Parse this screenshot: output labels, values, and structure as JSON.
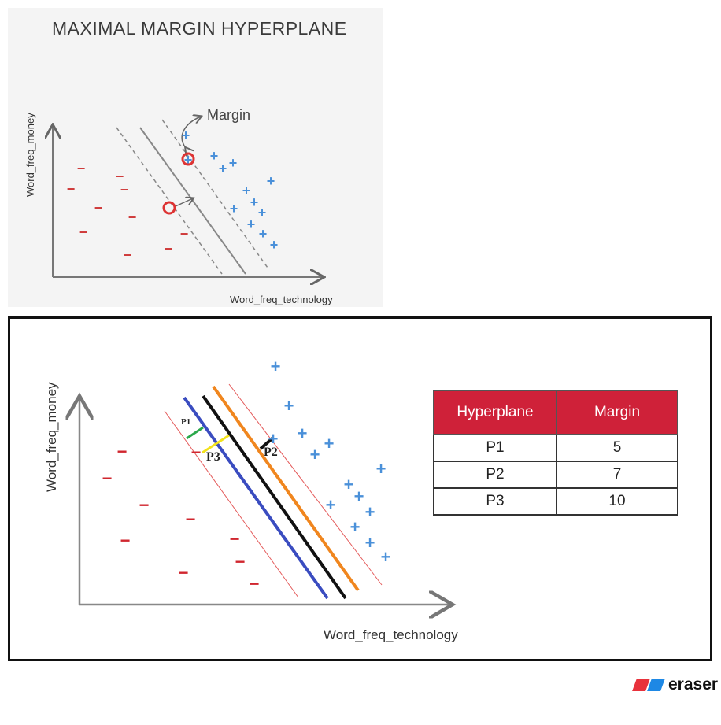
{
  "top": {
    "title": "MAXIMAL MARGIN HYPERPLANE",
    "x_label": "Word_freq_technology",
    "y_label": "Word_freq_money",
    "margin_label": "Margin",
    "minus_symbol": "−",
    "plus_symbol": "+"
  },
  "bottom": {
    "x_label": "Word_freq_technology",
    "y_label": "Word_freq_money",
    "minus_symbol": "−",
    "plus_symbol": "+",
    "p1_label": "P1",
    "p2_label": "P2",
    "p3_label": "P3"
  },
  "table": {
    "headers": [
      "Hyperplane",
      "Margin"
    ],
    "rows": [
      [
        "P1",
        "5"
      ],
      [
        "P2",
        "7"
      ],
      [
        "P3",
        "10"
      ]
    ]
  },
  "colors": {
    "header_bg": "#cf2139",
    "minus": "#d0262e",
    "plus": "#4a90d9",
    "p1_line": "#3a4cc0",
    "p2_line": "#111111",
    "p3_line": "#f0861e",
    "p1_margin": "#2aa84a",
    "p3_margin": "#f2e21c"
  },
  "logo": {
    "text": "eraser"
  }
}
